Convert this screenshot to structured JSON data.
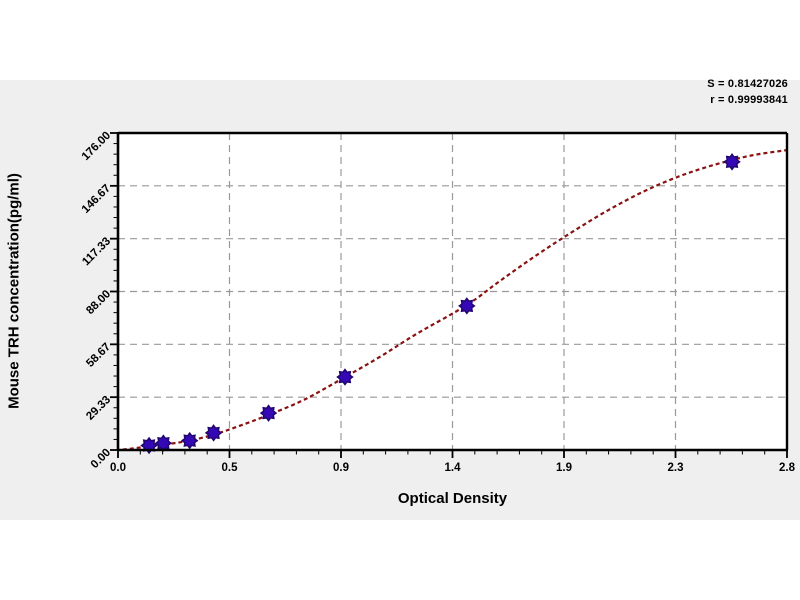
{
  "chart_data": {
    "type": "scatter",
    "title": "",
    "xlabel": "Optical Density",
    "ylabel": "Mouse TRH concentration(pg/ml)",
    "xlim": [
      0,
      2.8
    ],
    "ylim": [
      0,
      176
    ],
    "x_tick_values": [
      0,
      0.46667,
      0.93333,
      1.4,
      1.86667,
      2.33333,
      2.8
    ],
    "x_tick_labels": [
      "0.0",
      "0.5",
      "0.9",
      "1.4",
      "1.9",
      "2.3",
      "2.8"
    ],
    "y_tick_values": [
      0,
      29.33,
      58.67,
      88,
      117.33,
      146.67,
      176
    ],
    "y_tick_labels": [
      "0.00",
      "29.33",
      "58.67",
      "88.00",
      "117.33",
      "146.67",
      "176.00"
    ],
    "minor_ticks_per_interval": 4,
    "grid": true,
    "legend": "none",
    "series": [
      {
        "name": "standard-points",
        "type": "scatter",
        "points": [
          [
            0.13,
            2.5
          ],
          [
            0.19,
            3.8
          ],
          [
            0.3,
            5.2
          ],
          [
            0.4,
            9.5
          ],
          [
            0.63,
            20.5
          ],
          [
            0.95,
            40.5
          ],
          [
            1.46,
            80.0
          ],
          [
            2.57,
            160.0
          ]
        ]
      },
      {
        "name": "fitted-curve",
        "type": "line",
        "points": [
          [
            0.02,
            0.2
          ],
          [
            0.13,
            2.0
          ],
          [
            0.22,
            3.5
          ],
          [
            0.3,
            5.2
          ],
          [
            0.4,
            8.5
          ],
          [
            0.5,
            13.0
          ],
          [
            0.63,
            19.5
          ],
          [
            0.78,
            28.0
          ],
          [
            0.95,
            40.5
          ],
          [
            1.1,
            52.0
          ],
          [
            1.25,
            64.5
          ],
          [
            1.46,
            80.5
          ],
          [
            1.6,
            94.0
          ],
          [
            1.75,
            108.0
          ],
          [
            1.9,
            121.0
          ],
          [
            2.05,
            133.0
          ],
          [
            2.2,
            143.5
          ],
          [
            2.35,
            152.0
          ],
          [
            2.5,
            158.5
          ],
          [
            2.65,
            163.5
          ],
          [
            2.8,
            166.5
          ]
        ]
      }
    ],
    "stats": {
      "s": "S = 0.81427026",
      "r": "r = 0.99993841"
    },
    "colors": {
      "curve": "#8b1212",
      "marker": "#3408b4",
      "marker_edge": "#22066e",
      "grid": "#999999",
      "axis": "#000000",
      "tick_label": "#000000",
      "plot_bg": "#ffffff",
      "panel_bg": "#efefef"
    }
  }
}
